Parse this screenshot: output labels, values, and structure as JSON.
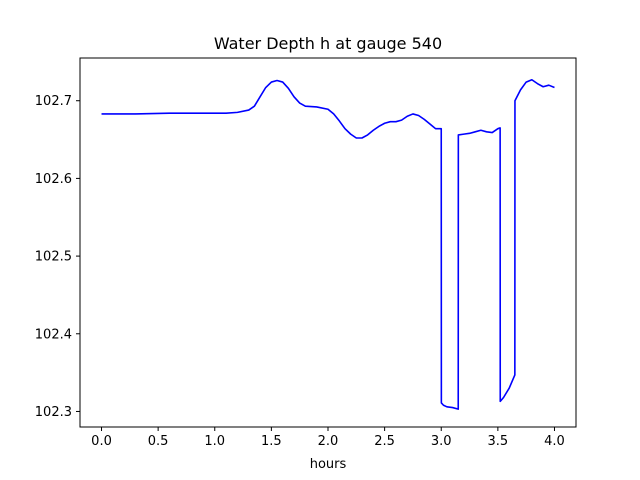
{
  "chart_data": {
    "type": "line",
    "title": "Water Depth h at gauge 540",
    "xlabel": "hours",
    "ylabel": "",
    "xlim": [
      -0.19,
      4.19
    ],
    "ylim": [
      102.28,
      102.755
    ],
    "x_ticks": [
      0.0,
      0.5,
      1.0,
      1.5,
      2.0,
      2.5,
      3.0,
      3.5,
      4.0
    ],
    "x_tick_labels": [
      "0.0",
      "0.5",
      "1.0",
      "1.5",
      "2.0",
      "2.5",
      "3.0",
      "3.5",
      "4.0"
    ],
    "y_ticks": [
      102.3,
      102.4,
      102.5,
      102.6,
      102.7
    ],
    "y_tick_labels": [
      "102.3",
      "102.4",
      "102.5",
      "102.6",
      "102.7"
    ],
    "grid": false,
    "legend": "none",
    "series_color": "#0000ff",
    "series": [
      {
        "x": [
          0.0,
          0.3,
          0.6,
          0.9,
          1.1,
          1.2,
          1.3,
          1.35,
          1.4,
          1.45,
          1.5,
          1.55,
          1.6,
          1.65,
          1.7,
          1.75,
          1.8,
          1.9,
          2.0,
          2.05,
          2.1,
          2.15,
          2.2,
          2.25,
          2.3,
          2.35,
          2.4,
          2.45,
          2.5,
          2.55,
          2.6,
          2.65,
          2.7,
          2.75,
          2.8,
          2.85,
          2.9,
          2.95,
          3.0,
          3.001,
          3.02,
          3.05,
          3.1,
          3.15,
          3.151,
          3.2,
          3.25,
          3.3,
          3.35,
          3.4,
          3.45,
          3.5,
          3.52,
          3.521,
          3.55,
          3.6,
          3.65,
          3.651,
          3.7,
          3.75,
          3.8,
          3.85,
          3.9,
          3.95,
          4.0
        ],
        "y": [
          102.683,
          102.683,
          102.684,
          102.684,
          102.684,
          102.685,
          102.688,
          102.693,
          102.705,
          102.717,
          102.724,
          102.726,
          102.724,
          102.716,
          102.705,
          102.697,
          102.693,
          102.692,
          102.689,
          102.683,
          102.674,
          102.664,
          102.657,
          102.652,
          102.652,
          102.656,
          102.662,
          102.667,
          102.671,
          102.673,
          102.673,
          102.675,
          102.68,
          102.683,
          102.681,
          102.676,
          102.67,
          102.664,
          102.664,
          102.311,
          102.308,
          102.306,
          102.305,
          102.303,
          102.656,
          102.657,
          102.658,
          102.66,
          102.662,
          102.66,
          102.659,
          102.664,
          102.665,
          102.313,
          102.318,
          102.33,
          102.347,
          102.7,
          102.714,
          102.724,
          102.727,
          102.722,
          102.718,
          102.72,
          102.717
        ]
      }
    ]
  }
}
